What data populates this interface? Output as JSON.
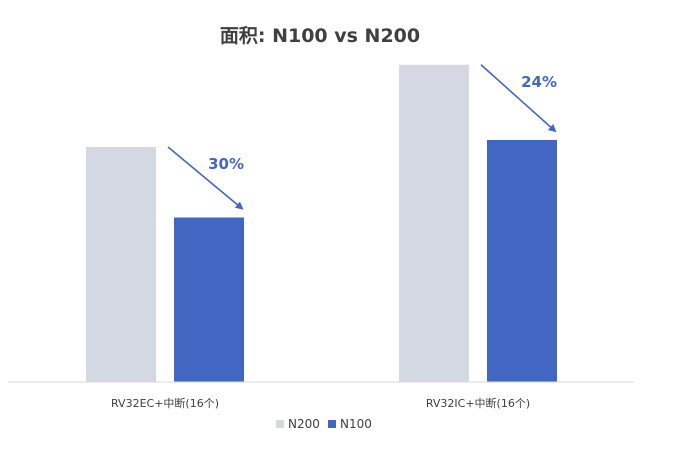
{
  "chart_data": {
    "type": "bar",
    "title": "面积: N100 vs N200",
    "categories": [
      "RV32EC+中断(16个)",
      "RV32IC+中断(16个)"
    ],
    "series": [
      {
        "name": "N200",
        "values": [
          100,
          135
        ],
        "color": "#d3d8e3"
      },
      {
        "name": "N100",
        "values": [
          70,
          103
        ],
        "color": "#4267c2"
      }
    ],
    "annotations": [
      "30%",
      "24%"
    ],
    "ylim": [
      0,
      140
    ],
    "grid": false,
    "legend": "bottom-center"
  }
}
